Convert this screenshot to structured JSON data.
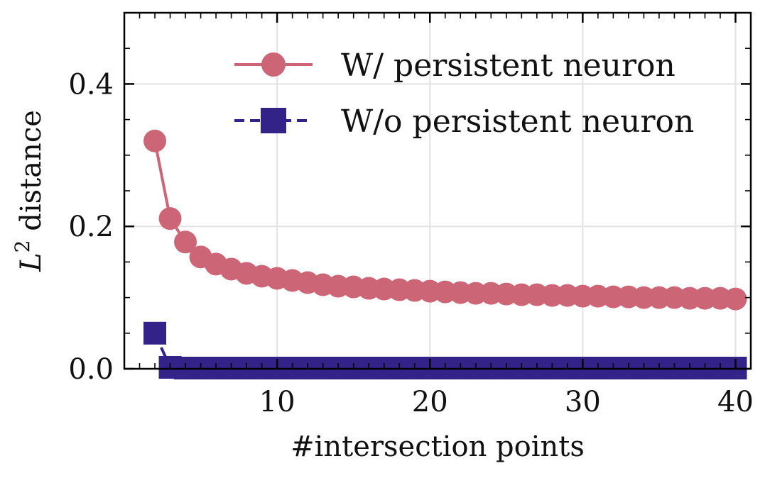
{
  "chart_data": {
    "type": "line",
    "title": "",
    "xlabel": "#intersection points",
    "ylabel_base": "L",
    "ylabel_sup": "2",
    "ylabel_rest": " distance",
    "xlim": [
      0,
      41
    ],
    "ylim": [
      0,
      0.5
    ],
    "xticks": [
      10,
      20,
      30,
      40
    ],
    "yticks": [
      0.0,
      0.2,
      0.4
    ],
    "ytick_labels": [
      "0.0",
      "0.2",
      "0.4"
    ],
    "xtick_labels": [
      "10",
      "20",
      "30",
      "40"
    ],
    "grid": true,
    "legend_position": "top-right",
    "series": [
      {
        "name": "W/ persistent neuron",
        "color": "#cc6677",
        "marker": "circle",
        "linestyle": "solid",
        "x": [
          2,
          3,
          4,
          5,
          6,
          7,
          8,
          9,
          10,
          11,
          12,
          13,
          14,
          15,
          16,
          17,
          18,
          19,
          20,
          21,
          22,
          23,
          24,
          25,
          26,
          27,
          28,
          29,
          30,
          31,
          32,
          33,
          34,
          35,
          36,
          37,
          38,
          39,
          40
        ],
        "values": [
          0.32,
          0.211,
          0.178,
          0.157,
          0.147,
          0.14,
          0.134,
          0.13,
          0.127,
          0.124,
          0.121,
          0.118,
          0.116,
          0.115,
          0.113,
          0.112,
          0.111,
          0.11,
          0.109,
          0.108,
          0.107,
          0.106,
          0.106,
          0.105,
          0.104,
          0.104,
          0.103,
          0.103,
          0.102,
          0.102,
          0.101,
          0.101,
          0.1,
          0.1,
          0.1,
          0.099,
          0.099,
          0.099,
          0.098
        ]
      },
      {
        "name": "W/o persistent neuron",
        "color": "#332288",
        "marker": "square",
        "linestyle": "dashed",
        "x": [
          2,
          3,
          4,
          5,
          6,
          7,
          8,
          9,
          10,
          11,
          12,
          13,
          14,
          15,
          16,
          17,
          18,
          19,
          20,
          21,
          22,
          23,
          24,
          25,
          26,
          27,
          28,
          29,
          30,
          31,
          32,
          33,
          34,
          35,
          36,
          37,
          38,
          39,
          40
        ],
        "values": [
          0.05,
          0.002,
          0.001,
          0.001,
          0.001,
          0.001,
          0.001,
          0.001,
          0.001,
          0.001,
          0.001,
          0.001,
          0.001,
          0.001,
          0.001,
          0.001,
          0.001,
          0.001,
          0.001,
          0.001,
          0.001,
          0.001,
          0.001,
          0.001,
          0.001,
          0.001,
          0.001,
          0.001,
          0.001,
          0.001,
          0.001,
          0.001,
          0.001,
          0.001,
          0.001,
          0.001,
          0.001,
          0.001,
          0.001
        ]
      }
    ]
  }
}
